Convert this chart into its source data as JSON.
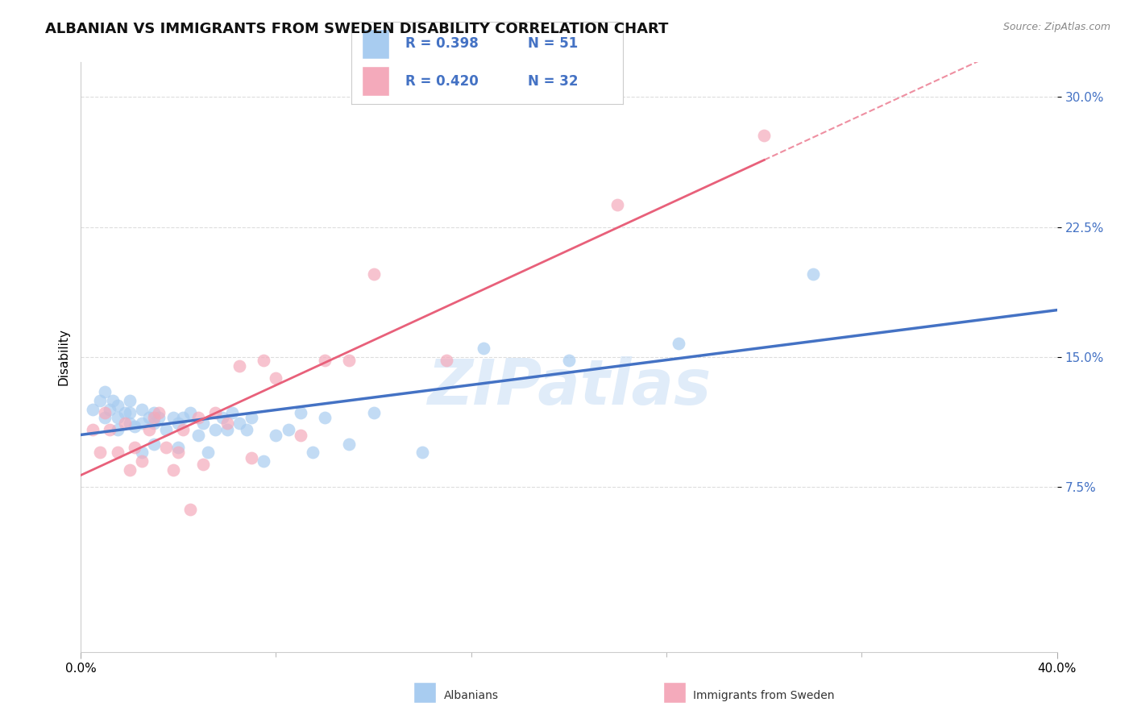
{
  "title": "ALBANIAN VS IMMIGRANTS FROM SWEDEN DISABILITY CORRELATION CHART",
  "source": "Source: ZipAtlas.com",
  "ylabel": "Disability",
  "xlim": [
    0.0,
    0.4
  ],
  "ylim": [
    -0.02,
    0.32
  ],
  "yticks": [
    0.075,
    0.15,
    0.225,
    0.3
  ],
  "ytick_labels": [
    "7.5%",
    "15.0%",
    "22.5%",
    "30.0%"
  ],
  "legend_r1": "0.398",
  "legend_n1": "51",
  "legend_r2": "0.420",
  "legend_n2": "32",
  "blue_color": "#A8CCF0",
  "pink_color": "#F4AABB",
  "blue_line_color": "#4472C4",
  "pink_line_color": "#E8607A",
  "watermark": "ZIPatlas",
  "title_fontsize": 13,
  "axis_label_fontsize": 11,
  "tick_fontsize": 11,
  "albanians_x": [
    0.005,
    0.008,
    0.01,
    0.01,
    0.012,
    0.013,
    0.015,
    0.015,
    0.015,
    0.018,
    0.02,
    0.02,
    0.02,
    0.022,
    0.025,
    0.025,
    0.025,
    0.028,
    0.03,
    0.03,
    0.03,
    0.032,
    0.035,
    0.038,
    0.04,
    0.04,
    0.042,
    0.045,
    0.048,
    0.05,
    0.052,
    0.055,
    0.058,
    0.06,
    0.062,
    0.065,
    0.068,
    0.07,
    0.075,
    0.08,
    0.085,
    0.09,
    0.095,
    0.1,
    0.11,
    0.12,
    0.14,
    0.165,
    0.2,
    0.245,
    0.3
  ],
  "albanians_y": [
    0.12,
    0.125,
    0.115,
    0.13,
    0.12,
    0.125,
    0.108,
    0.115,
    0.122,
    0.118,
    0.112,
    0.118,
    0.125,
    0.11,
    0.095,
    0.112,
    0.12,
    0.115,
    0.1,
    0.112,
    0.118,
    0.115,
    0.108,
    0.115,
    0.098,
    0.112,
    0.115,
    0.118,
    0.105,
    0.112,
    0.095,
    0.108,
    0.115,
    0.108,
    0.118,
    0.112,
    0.108,
    0.115,
    0.09,
    0.105,
    0.108,
    0.118,
    0.095,
    0.115,
    0.1,
    0.118,
    0.095,
    0.155,
    0.148,
    0.158,
    0.198
  ],
  "immigrants_x": [
    0.005,
    0.008,
    0.01,
    0.012,
    0.015,
    0.018,
    0.02,
    0.022,
    0.025,
    0.028,
    0.03,
    0.032,
    0.035,
    0.038,
    0.04,
    0.042,
    0.045,
    0.048,
    0.05,
    0.055,
    0.06,
    0.065,
    0.07,
    0.075,
    0.08,
    0.09,
    0.1,
    0.11,
    0.12,
    0.15,
    0.22,
    0.28
  ],
  "immigrants_y": [
    0.108,
    0.095,
    0.118,
    0.108,
    0.095,
    0.112,
    0.085,
    0.098,
    0.09,
    0.108,
    0.115,
    0.118,
    0.098,
    0.085,
    0.095,
    0.108,
    0.062,
    0.115,
    0.088,
    0.118,
    0.112,
    0.145,
    0.092,
    0.148,
    0.138,
    0.105,
    0.148,
    0.148,
    0.198,
    0.148,
    0.238,
    0.278
  ]
}
